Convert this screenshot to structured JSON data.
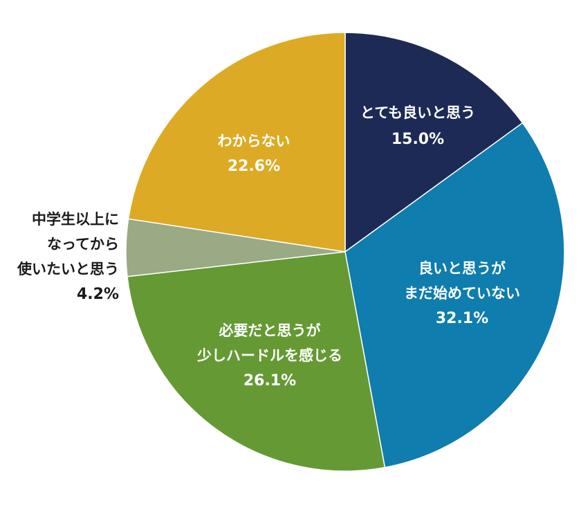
{
  "chart_data": {
    "type": "pie",
    "title": "",
    "slices": [
      {
        "label_lines": [
          "とても良いと思う"
        ],
        "value": 15.0,
        "value_label": "15.0%",
        "color": "#1d2a55",
        "label_color": "#ffffff"
      },
      {
        "label_lines": [
          "良いと思うが",
          "まだ始めていない"
        ],
        "value": 32.1,
        "value_label": "32.1%",
        "color": "#0f7dae",
        "label_color": "#ffffff"
      },
      {
        "label_lines": [
          "必要だと思うが",
          "少しハードルを感じる"
        ],
        "value": 26.1,
        "value_label": "26.1%",
        "color": "#659934",
        "label_color": "#ffffff"
      },
      {
        "label_lines": [
          "中学生以上に",
          "なってから",
          "使いたいと思う"
        ],
        "value": 4.2,
        "value_label": "4.2%",
        "color": "#99aa85",
        "label_color": "#1a1a1a",
        "label_outside": true
      },
      {
        "label_lines": [
          "わからない"
        ],
        "value": 22.6,
        "value_label": "22.6%",
        "color": "#dcaa24",
        "label_color": "#ffffff"
      }
    ],
    "start_angle_deg": 0,
    "direction": "clockwise",
    "legend": "none"
  }
}
